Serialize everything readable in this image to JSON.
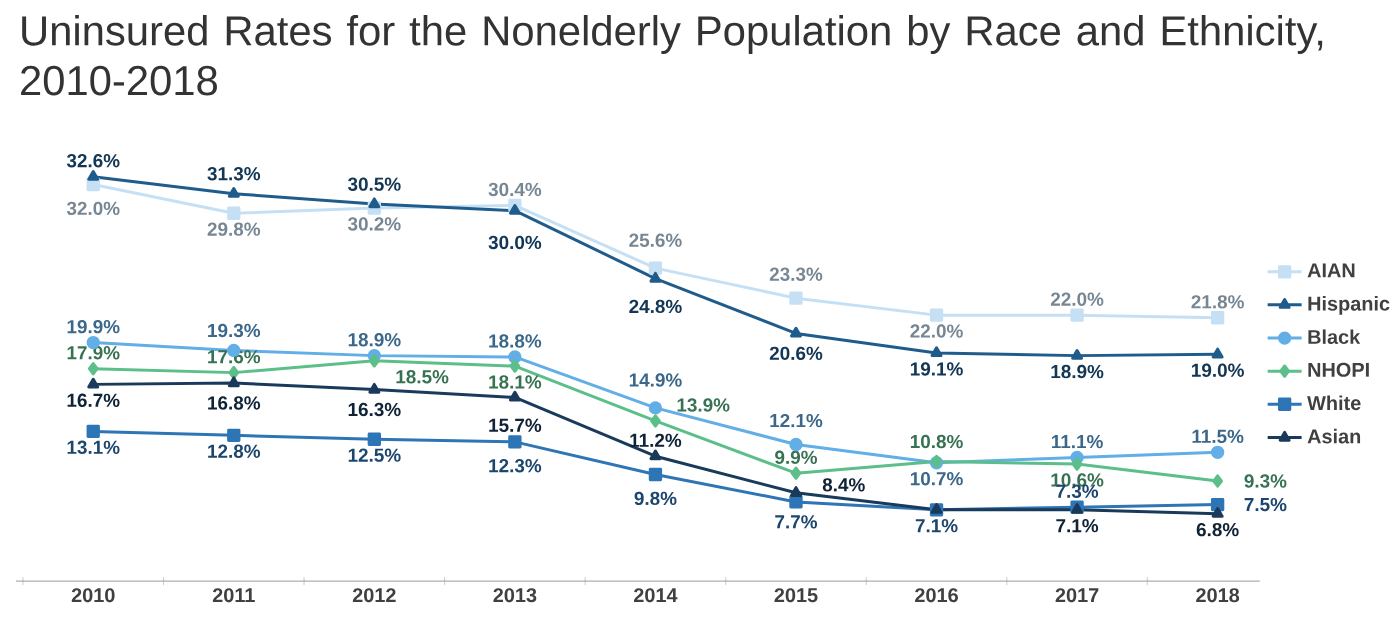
{
  "chart_data": {
    "type": "line",
    "title": "Uninsured Rates for the Nonelderly Population by Race and Ethnicity, 2010-2018",
    "categories": [
      "2010",
      "2011",
      "2012",
      "2013",
      "2014",
      "2015",
      "2016",
      "2017",
      "2018"
    ],
    "series": [
      {
        "name": "AIAN",
        "color": "#c5e0f5",
        "marker": "square",
        "values": [
          32.0,
          29.8,
          30.2,
          30.4,
          25.6,
          23.3,
          22.0,
          22.0,
          21.8
        ],
        "value_labels": [
          "32.0%",
          "29.8%",
          "30.2%",
          "30.4%",
          "25.6%",
          "23.3%",
          "22.0%",
          "22.0%",
          "21.8%"
        ]
      },
      {
        "name": "Hispanic",
        "color": "#1f5c8c",
        "marker": "triangle",
        "values": [
          32.6,
          31.3,
          30.5,
          30.0,
          24.8,
          20.6,
          19.1,
          18.9,
          19.0
        ],
        "value_labels": [
          "32.6%",
          "31.3%",
          "30.5%",
          "30.0%",
          "24.8%",
          "20.6%",
          "19.1%",
          "18.9%",
          "19.0%"
        ]
      },
      {
        "name": "Black",
        "color": "#62aee6",
        "marker": "circle",
        "values": [
          19.9,
          19.3,
          18.9,
          18.8,
          14.9,
          12.1,
          10.7,
          11.1,
          11.5
        ],
        "value_labels": [
          "19.9%",
          "19.3%",
          "18.9%",
          "18.8%",
          "14.9%",
          "12.1%",
          "10.7%",
          "11.1%",
          "11.5%"
        ]
      },
      {
        "name": "NHOPI",
        "color": "#5cbf8a",
        "marker": "diamond",
        "values": [
          17.9,
          17.6,
          18.5,
          18.1,
          13.9,
          9.9,
          10.8,
          10.6,
          9.3
        ],
        "value_labels": [
          "17.9%",
          "17.6%",
          "18.5%",
          "18.1%",
          "13.9%",
          "9.9%",
          "10.8%",
          "10.6%",
          "9.3%"
        ]
      },
      {
        "name": "White",
        "color": "#2e75b6",
        "marker": "square",
        "values": [
          13.1,
          12.8,
          12.5,
          12.3,
          9.8,
          7.7,
          7.1,
          7.3,
          7.5
        ],
        "value_labels": [
          "13.1%",
          "12.8%",
          "12.5%",
          "12.3%",
          "9.8%",
          "7.7%",
          "7.1%",
          "7.3%",
          "7.5%"
        ]
      },
      {
        "name": "Asian",
        "color": "#1a3a5c",
        "marker": "triangle",
        "values": [
          16.7,
          16.8,
          16.3,
          15.7,
          11.2,
          8.4,
          7.1,
          7.1,
          6.8
        ],
        "value_labels": [
          "16.7%",
          "16.8%",
          "16.3%",
          "15.7%",
          "11.2%",
          "8.4%",
          null,
          "7.1%",
          "6.8%"
        ]
      }
    ],
    "legend": "right",
    "grid": false,
    "data_labels": true
  }
}
